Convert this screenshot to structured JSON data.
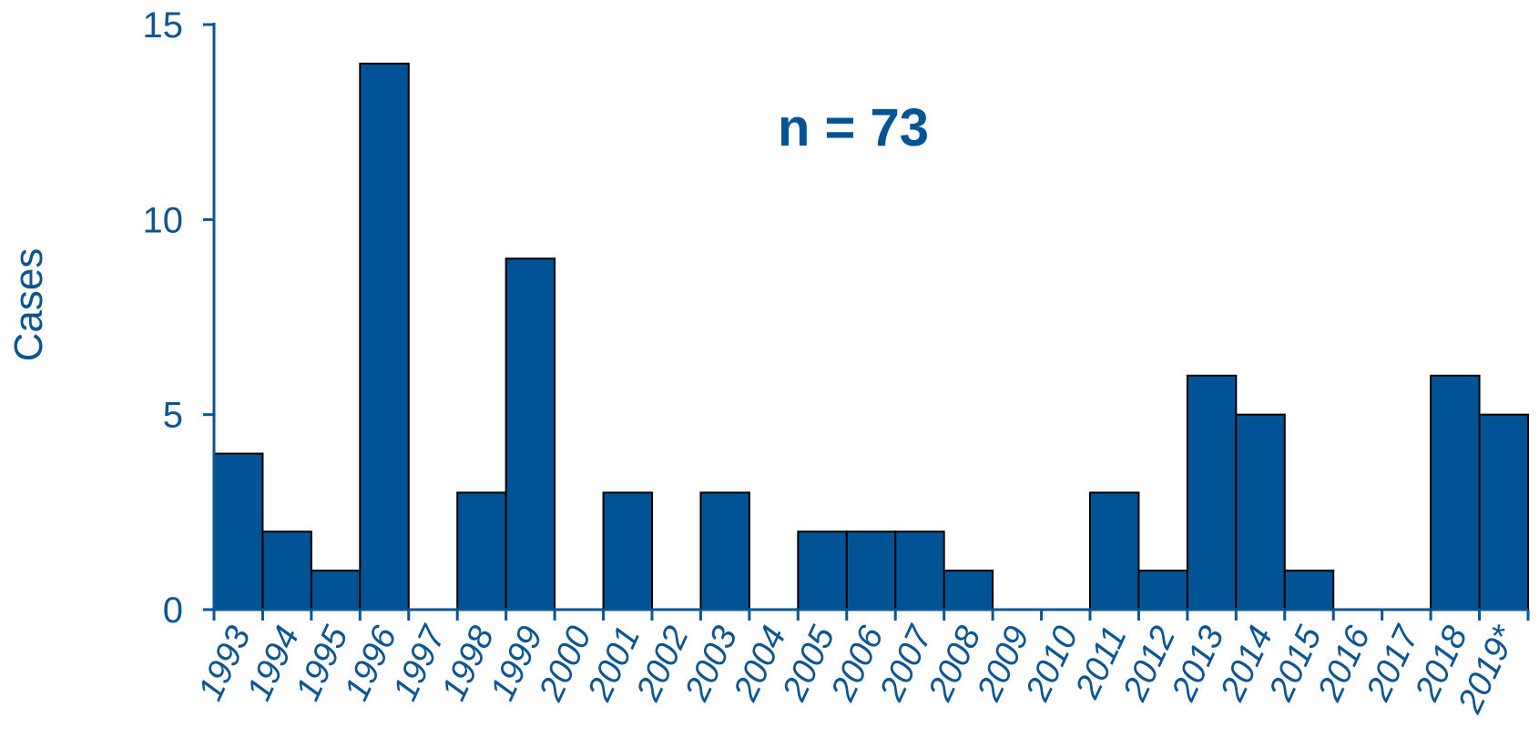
{
  "chart_data": {
    "type": "bar",
    "categories": [
      "1993",
      "1994",
      "1995",
      "1996",
      "1997",
      "1998",
      "1999",
      "2000",
      "2001",
      "2002",
      "2003",
      "2004",
      "2005",
      "2006",
      "2007",
      "2008",
      "2009",
      "2010",
      "2011",
      "2012",
      "2013",
      "2014",
      "2015",
      "2016",
      "2017",
      "2018",
      "2019*"
    ],
    "values": [
      4,
      2,
      1,
      14,
      0,
      3,
      9,
      0,
      3,
      0,
      3,
      0,
      2,
      2,
      2,
      1,
      0,
      0,
      3,
      1,
      6,
      5,
      1,
      0,
      0,
      6,
      5
    ],
    "title": "",
    "xlabel": "",
    "ylabel": "Cases",
    "ylim": [
      0,
      15
    ],
    "yticks": [
      0,
      5,
      10,
      15
    ],
    "annotation": "n = 73",
    "grid": false,
    "legend": "none",
    "colors": {
      "bar": "#005495",
      "bar_edge": "#000000",
      "axis": "#0a5592",
      "text": "#0a5592"
    }
  }
}
